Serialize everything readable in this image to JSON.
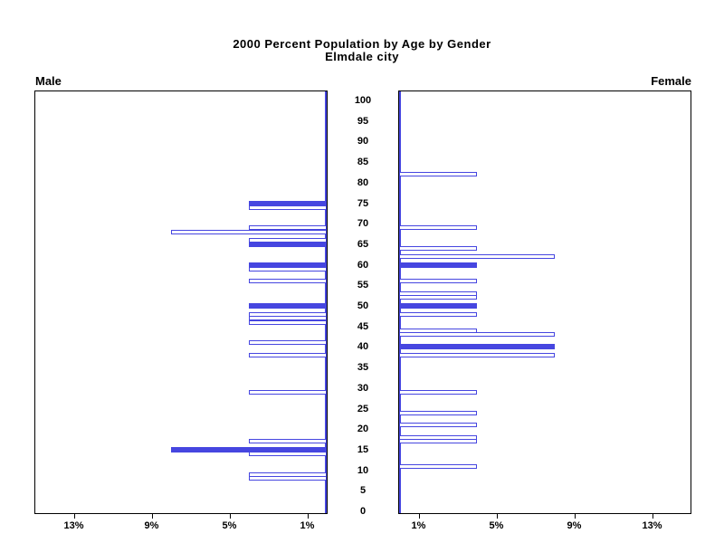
{
  "title": {
    "line1": "2000 Percent Population by Age by Gender",
    "line2": "Elmdale city"
  },
  "panel_labels": {
    "male": "Male",
    "female": "Female"
  },
  "colors": {
    "bar_blue": "#4646e0",
    "axis_black": "#000000",
    "background": "#ffffff"
  },
  "age_axis": {
    "tick_ages": [
      100,
      95,
      90,
      85,
      80,
      75,
      70,
      65,
      60,
      55,
      50,
      45,
      40,
      35,
      30,
      25,
      20,
      15,
      10,
      5,
      0
    ]
  },
  "percent_axis": {
    "ticks": [
      {
        "value": 1,
        "label": "1%"
      },
      {
        "value": 5,
        "label": "5%"
      },
      {
        "value": 9,
        "label": "9%"
      },
      {
        "value": 13,
        "label": "13%"
      }
    ],
    "max_percent": 15
  },
  "chart_data": {
    "type": "bar",
    "variant": "population-pyramid",
    "title": "2000 Percent Population by Age by Gender",
    "subtitle": "Elmdale city",
    "x_unit": "percent of population",
    "x_range": [
      0,
      15
    ],
    "x_tick_values": [
      1,
      5,
      9,
      13
    ],
    "age_range": [
      0,
      100
    ],
    "age_tick_step": 5,
    "legend_position": "none",
    "grid": false,
    "bar_meaning": "percent of population at single year of age; solid bars mark ages divisible by 5, hollow bars other ages",
    "series": [
      {
        "name": "Male",
        "side": "left",
        "points": [
          {
            "age": 75,
            "pct": 4,
            "solid": true
          },
          {
            "age": 74,
            "pct": 4,
            "solid": false
          },
          {
            "age": 69,
            "pct": 4,
            "solid": false
          },
          {
            "age": 68,
            "pct": 8,
            "solid": false
          },
          {
            "age": 66,
            "pct": 4,
            "solid": false
          },
          {
            "age": 65,
            "pct": 4,
            "solid": true
          },
          {
            "age": 60,
            "pct": 4,
            "solid": true
          },
          {
            "age": 59,
            "pct": 4,
            "solid": false
          },
          {
            "age": 56,
            "pct": 4,
            "solid": false
          },
          {
            "age": 50,
            "pct": 4,
            "solid": true
          },
          {
            "age": 48,
            "pct": 4,
            "solid": false
          },
          {
            "age": 47,
            "pct": 4,
            "solid": false
          },
          {
            "age": 46,
            "pct": 4,
            "solid": false
          },
          {
            "age": 41,
            "pct": 4,
            "solid": false
          },
          {
            "age": 38,
            "pct": 4,
            "solid": false
          },
          {
            "age": 29,
            "pct": 4,
            "solid": false
          },
          {
            "age": 17,
            "pct": 4,
            "solid": false
          },
          {
            "age": 15,
            "pct": 8,
            "solid": true
          },
          {
            "age": 14,
            "pct": 4,
            "solid": false
          },
          {
            "age": 9,
            "pct": 4,
            "solid": false
          },
          {
            "age": 8,
            "pct": 4,
            "solid": false
          }
        ]
      },
      {
        "name": "Female",
        "side": "right",
        "points": [
          {
            "age": 82,
            "pct": 4,
            "solid": false
          },
          {
            "age": 69,
            "pct": 4,
            "solid": false
          },
          {
            "age": 64,
            "pct": 4,
            "solid": false
          },
          {
            "age": 62,
            "pct": 8,
            "solid": false
          },
          {
            "age": 60,
            "pct": 4,
            "solid": true
          },
          {
            "age": 56,
            "pct": 4,
            "solid": false
          },
          {
            "age": 53,
            "pct": 4,
            "solid": false
          },
          {
            "age": 52,
            "pct": 4,
            "solid": false
          },
          {
            "age": 50,
            "pct": 4,
            "solid": true
          },
          {
            "age": 48,
            "pct": 4,
            "solid": false
          },
          {
            "age": 44,
            "pct": 4,
            "solid": false
          },
          {
            "age": 43,
            "pct": 8,
            "solid": false
          },
          {
            "age": 40,
            "pct": 8,
            "solid": true
          },
          {
            "age": 38,
            "pct": 8,
            "solid": false
          },
          {
            "age": 29,
            "pct": 4,
            "solid": false
          },
          {
            "age": 24,
            "pct": 4,
            "solid": false
          },
          {
            "age": 21,
            "pct": 4,
            "solid": false
          },
          {
            "age": 18,
            "pct": 4,
            "solid": false
          },
          {
            "age": 17,
            "pct": 4,
            "solid": false
          },
          {
            "age": 11,
            "pct": 4,
            "solid": false
          }
        ]
      }
    ]
  }
}
